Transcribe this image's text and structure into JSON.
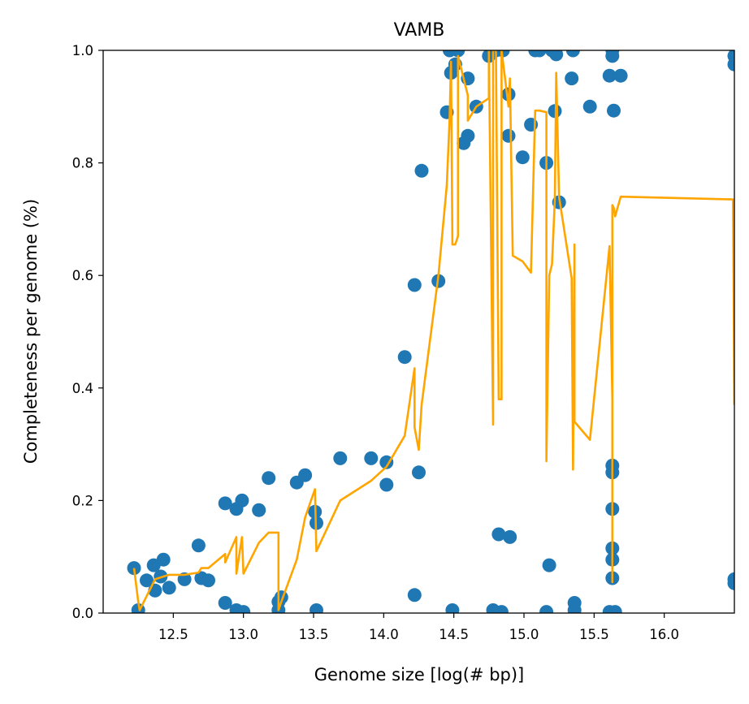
{
  "chart_data": {
    "type": "scatter",
    "title": "VAMB",
    "xlabel": "Genome size [log(# bp)]",
    "ylabel": "Completeness per genome (%)",
    "xlim": [
      12.0,
      16.5
    ],
    "ylim": [
      0.0,
      1.0
    ],
    "x_ticks": [
      "12.5",
      "13.0",
      "13.5",
      "14.0",
      "14.5",
      "15.0",
      "15.5",
      "16.0"
    ],
    "y_ticks": [
      "0.0",
      "0.2",
      "0.4",
      "0.6",
      "0.8",
      "1.0"
    ],
    "grid": false,
    "colors": {
      "points": "#1f77b4",
      "line": "#ffa500"
    },
    "series": [
      {
        "type": "scatter",
        "points": [
          [
            12.22,
            0.08
          ],
          [
            12.25,
            0.005
          ],
          [
            12.31,
            0.058
          ],
          [
            12.36,
            0.085
          ],
          [
            12.37,
            0.04
          ],
          [
            12.41,
            0.065
          ],
          [
            12.43,
            0.095
          ],
          [
            12.47,
            0.045
          ],
          [
            12.58,
            0.06
          ],
          [
            12.68,
            0.12
          ],
          [
            12.7,
            0.062
          ],
          [
            12.75,
            0.058
          ],
          [
            12.87,
            0.195
          ],
          [
            12.87,
            0.018
          ],
          [
            12.95,
            0.185
          ],
          [
            12.95,
            0.005
          ],
          [
            12.99,
            0.2
          ],
          [
            13.0,
            0.002
          ],
          [
            13.11,
            0.183
          ],
          [
            13.18,
            0.24
          ],
          [
            13.25,
            0.005
          ],
          [
            13.25,
            0.02
          ],
          [
            13.27,
            0.028
          ],
          [
            13.38,
            0.232
          ],
          [
            13.44,
            0.245
          ],
          [
            13.51,
            0.18
          ],
          [
            13.52,
            0.16
          ],
          [
            13.52,
            0.005
          ],
          [
            13.69,
            0.275
          ],
          [
            13.91,
            0.275
          ],
          [
            14.02,
            0.268
          ],
          [
            14.02,
            0.228
          ],
          [
            14.15,
            0.455
          ],
          [
            14.22,
            0.583
          ],
          [
            14.22,
            0.032
          ],
          [
            14.25,
            0.25
          ],
          [
            14.27,
            0.786
          ],
          [
            14.39,
            0.59
          ],
          [
            14.45,
            0.89
          ],
          [
            14.47,
            1.0
          ],
          [
            14.48,
            0.96
          ],
          [
            14.49,
            0.005
          ],
          [
            14.51,
            0.975
          ],
          [
            14.53,
            1.0
          ],
          [
            14.57,
            0.835
          ],
          [
            14.6,
            0.95
          ],
          [
            14.6,
            0.848
          ],
          [
            14.66,
            0.9
          ],
          [
            14.75,
            0.99
          ],
          [
            14.78,
            0.005
          ],
          [
            14.8,
            1.0
          ],
          [
            14.82,
            0.14
          ],
          [
            14.84,
            0.002
          ],
          [
            14.85,
            1.0
          ],
          [
            14.89,
            0.848
          ],
          [
            14.89,
            0.922
          ],
          [
            14.9,
            0.135
          ],
          [
            14.99,
            0.81
          ],
          [
            15.05,
            0.868
          ],
          [
            15.08,
            1.0
          ],
          [
            15.11,
            1.0
          ],
          [
            15.16,
            0.8
          ],
          [
            15.16,
            0.002
          ],
          [
            15.18,
            0.085
          ],
          [
            15.2,
            1.0
          ],
          [
            15.22,
            0.892
          ],
          [
            15.23,
            0.993
          ],
          [
            15.25,
            0.73
          ],
          [
            15.34,
            0.95
          ],
          [
            15.35,
            1.0
          ],
          [
            15.36,
            0.018
          ],
          [
            15.36,
            0.005
          ],
          [
            15.47,
            0.9
          ],
          [
            15.61,
            0.955
          ],
          [
            15.61,
            0.002
          ],
          [
            15.63,
            1.0
          ],
          [
            15.63,
            0.99
          ],
          [
            15.63,
            0.262
          ],
          [
            15.63,
            0.25
          ],
          [
            15.63,
            0.185
          ],
          [
            15.63,
            0.115
          ],
          [
            15.63,
            0.095
          ],
          [
            15.63,
            0.062
          ],
          [
            15.64,
            0.893
          ],
          [
            15.65,
            0.002
          ],
          [
            15.69,
            0.955
          ],
          [
            16.5,
            0.99
          ],
          [
            16.5,
            0.975
          ],
          [
            16.5,
            0.06
          ],
          [
            16.5,
            0.053
          ]
        ]
      },
      {
        "type": "line",
        "points": [
          [
            12.22,
            0.08
          ],
          [
            12.25,
            0.02
          ],
          [
            12.26,
            0.005
          ],
          [
            12.31,
            0.03
          ],
          [
            12.37,
            0.06
          ],
          [
            12.43,
            0.065
          ],
          [
            12.47,
            0.068
          ],
          [
            12.58,
            0.068
          ],
          [
            12.68,
            0.072
          ],
          [
            12.7,
            0.08
          ],
          [
            12.75,
            0.08
          ],
          [
            12.87,
            0.105
          ],
          [
            12.87,
            0.09
          ],
          [
            12.95,
            0.135
          ],
          [
            12.95,
            0.07
          ],
          [
            12.99,
            0.135
          ],
          [
            13.0,
            0.07
          ],
          [
            13.11,
            0.125
          ],
          [
            13.18,
            0.143
          ],
          [
            13.25,
            0.143
          ],
          [
            13.25,
            0.005
          ],
          [
            13.27,
            0.02
          ],
          [
            13.38,
            0.095
          ],
          [
            13.44,
            0.17
          ],
          [
            13.51,
            0.22
          ],
          [
            13.52,
            0.11
          ],
          [
            13.69,
            0.2
          ],
          [
            13.91,
            0.235
          ],
          [
            14.02,
            0.26
          ],
          [
            14.15,
            0.315
          ],
          [
            14.22,
            0.435
          ],
          [
            14.22,
            0.33
          ],
          [
            14.25,
            0.29
          ],
          [
            14.27,
            0.37
          ],
          [
            14.39,
            0.6
          ],
          [
            14.45,
            0.76
          ],
          [
            14.47,
            0.88
          ],
          [
            14.48,
            0.98
          ],
          [
            14.49,
            0.655
          ],
          [
            14.51,
            0.655
          ],
          [
            14.53,
            0.67
          ],
          [
            14.53,
            0.99
          ],
          [
            14.6,
            0.92
          ],
          [
            14.6,
            0.875
          ],
          [
            14.66,
            0.9
          ],
          [
            14.75,
            0.915
          ],
          [
            14.75,
            1.0
          ],
          [
            14.78,
            0.335
          ],
          [
            14.78,
            1.0
          ],
          [
            14.8,
            1.0
          ],
          [
            14.82,
            0.38
          ],
          [
            14.84,
            0.38
          ],
          [
            14.84,
            1.0
          ],
          [
            14.89,
            0.9
          ],
          [
            14.9,
            0.95
          ],
          [
            14.92,
            0.635
          ],
          [
            14.99,
            0.625
          ],
          [
            15.05,
            0.605
          ],
          [
            15.08,
            0.893
          ],
          [
            15.11,
            0.893
          ],
          [
            15.16,
            0.89
          ],
          [
            15.16,
            0.27
          ],
          [
            15.18,
            0.6
          ],
          [
            15.2,
            0.62
          ],
          [
            15.22,
            0.735
          ],
          [
            15.23,
            0.96
          ],
          [
            15.25,
            0.74
          ],
          [
            15.34,
            0.595
          ],
          [
            15.35,
            0.255
          ],
          [
            15.36,
            0.655
          ],
          [
            15.36,
            0.34
          ],
          [
            15.47,
            0.308
          ],
          [
            15.61,
            0.652
          ],
          [
            15.63,
            0.38
          ],
          [
            15.63,
            0.055
          ],
          [
            15.63,
            0.725
          ],
          [
            15.64,
            0.72
          ],
          [
            15.65,
            0.705
          ],
          [
            15.69,
            0.74
          ],
          [
            16.49,
            0.735
          ],
          [
            16.5,
            0.37
          ]
        ]
      }
    ]
  }
}
